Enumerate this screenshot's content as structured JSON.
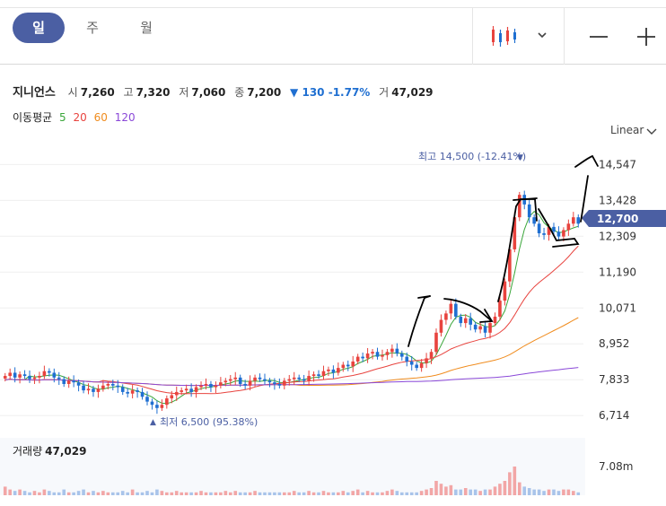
{
  "tabs": [
    {
      "label": "일",
      "active": true
    },
    {
      "label": "주",
      "active": false
    },
    {
      "label": "월",
      "active": false
    }
  ],
  "toolbar": {
    "chart_type_icon": "candlestick-icon",
    "dropdown_icon": "chevron-down-icon",
    "zoom_out_icon": "minus-icon",
    "zoom_in_icon": "plus-icon"
  },
  "stock": {
    "name": "지니언스",
    "open_label": "시",
    "open": "7,260",
    "high_label": "고",
    "high": "7,320",
    "low_label": "저",
    "low": "7,060",
    "close_label": "종",
    "close": "7,200",
    "change_arrow": "▼",
    "change": "130",
    "change_pct": "-1.77%",
    "volume_label": "거",
    "volume": "47,029"
  },
  "ma": {
    "label": "이동평균",
    "periods": [
      {
        "label": "5",
        "color": "#3aa63a"
      },
      {
        "label": "20",
        "color": "#e8433e"
      },
      {
        "label": "60",
        "color": "#f08c1e"
      },
      {
        "label": "120",
        "color": "#8a48d8"
      }
    ]
  },
  "scale": {
    "label": "Linear"
  },
  "volume_panel": {
    "label": "거래량",
    "value": "47,029",
    "axis_tick": "7.08m"
  },
  "colors": {
    "up": "#e8433e",
    "down": "#1f6fd1",
    "accent": "#4b5fa3"
  },
  "chart_data": {
    "type": "candlestick",
    "y_ticks": [
      "14,547",
      "13,428",
      "12,309",
      "11,190",
      "10,071",
      "8,952",
      "7,833",
      "6,714"
    ],
    "y_tick_values": [
      14547,
      13428,
      12309,
      11190,
      10071,
      8952,
      7833,
      6714
    ],
    "ylim": [
      6300,
      15200
    ],
    "current_price_label": "12,700",
    "current_price": 12700,
    "high_annotation": "최고 14,500 (-12.41%)",
    "high_marker": "▼",
    "low_annotation": "최저 6,500 (95.38%)",
    "low_marker": "▲",
    "grid": true,
    "close": [
      7950,
      8050,
      7900,
      8000,
      7950,
      7850,
      7900,
      7950,
      8100,
      8050,
      7900,
      7850,
      7700,
      7800,
      7750,
      7650,
      7500,
      7550,
      7450,
      7550,
      7650,
      7700,
      7650,
      7600,
      7450,
      7400,
      7500,
      7450,
      7300,
      7150,
      7050,
      6950,
      7050,
      7250,
      7350,
      7450,
      7500,
      7550,
      7450,
      7600,
      7650,
      7700,
      7600,
      7650,
      7750,
      7800,
      7850,
      7900,
      7700,
      7650,
      7800,
      7900,
      7850,
      7800,
      7750,
      7700,
      7650,
      7800,
      7850,
      7900,
      7850,
      7800,
      7950,
      8000,
      7950,
      8100,
      8150,
      8050,
      8200,
      8300,
      8250,
      8400,
      8550,
      8500,
      8650,
      8700,
      8550,
      8600,
      8700,
      8800,
      8650,
      8550,
      8400,
      8300,
      8200,
      8350,
      8500,
      8700,
      9300,
      9700,
      9900,
      10200,
      9800,
      9600,
      9750,
      9550,
      9400,
      9500,
      9300,
      9600,
      9800,
      10300,
      10900,
      11900,
      12900,
      13600,
      13300,
      12900,
      12700,
      12400,
      12350,
      12600,
      12450,
      12300,
      12500,
      12700,
      12900,
      12700
    ],
    "volume_relative": [
      0.3,
      0.2,
      0.15,
      0.2,
      0.15,
      0.1,
      0.15,
      0.1,
      0.2,
      0.15,
      0.1,
      0.1,
      0.2,
      0.1,
      0.1,
      0.15,
      0.2,
      0.1,
      0.15,
      0.1,
      0.15,
      0.1,
      0.1,
      0.1,
      0.15,
      0.1,
      0.2,
      0.1,
      0.1,
      0.15,
      0.1,
      0.2,
      0.15,
      0.1,
      0.1,
      0.15,
      0.1,
      0.1,
      0.1,
      0.1,
      0.15,
      0.1,
      0.1,
      0.1,
      0.1,
      0.15,
      0.1,
      0.15,
      0.1,
      0.1,
      0.1,
      0.15,
      0.1,
      0.1,
      0.1,
      0.1,
      0.1,
      0.1,
      0.1,
      0.15,
      0.1,
      0.1,
      0.15,
      0.1,
      0.1,
      0.15,
      0.1,
      0.1,
      0.1,
      0.15,
      0.1,
      0.15,
      0.2,
      0.1,
      0.15,
      0.1,
      0.1,
      0.1,
      0.15,
      0.2,
      0.15,
      0.1,
      0.1,
      0.1,
      0.1,
      0.15,
      0.2,
      0.25,
      0.5,
      0.4,
      0.3,
      0.35,
      0.2,
      0.2,
      0.25,
      0.2,
      0.2,
      0.15,
      0.2,
      0.2,
      0.3,
      0.4,
      0.5,
      0.8,
      1.0,
      0.45,
      0.3,
      0.25,
      0.2,
      0.2,
      0.15,
      0.2,
      0.2,
      0.15,
      0.2,
      0.2,
      0.15,
      0.1
    ]
  }
}
